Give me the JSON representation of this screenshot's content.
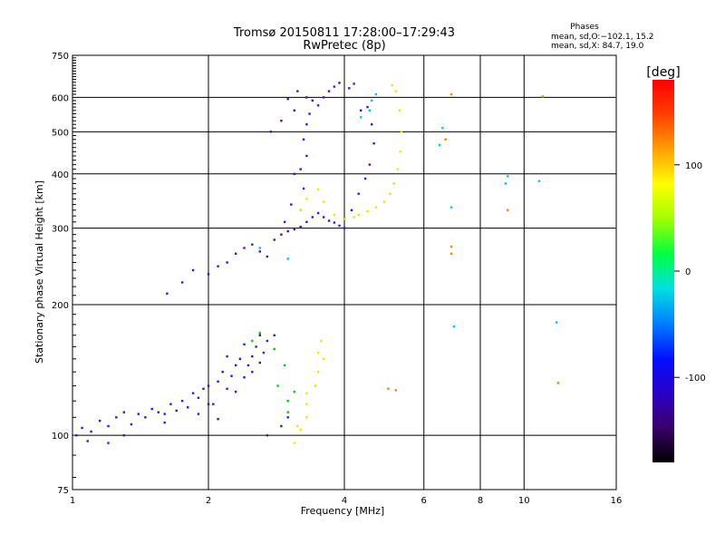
{
  "chart_data": {
    "type": "scatter",
    "title": "Tromsø 20150811 17:28:00–17:29:43",
    "subtitle": "RwPretec (8p)",
    "xlabel": "Frequency [MHz]",
    "ylabel": "Stationary phase Virtual Height [km]",
    "x_scale": "log",
    "y_scale": "log",
    "xlim": [
      1,
      16
    ],
    "ylim": [
      75,
      750
    ],
    "x_ticks": [
      1,
      2,
      4,
      6,
      8,
      10,
      16
    ],
    "y_ticks": [
      75,
      100,
      200,
      300,
      400,
      500,
      600,
      750
    ],
    "grid": true,
    "stats": {
      "heading": "Phases",
      "line1": "mean, sd,O:−102.1, 15.2",
      "line2": "mean, sd,X:  84.7, 19.0"
    },
    "colorbar": {
      "label": "[deg]",
      "range": [
        -180,
        180
      ],
      "ticks": [
        100,
        0,
        -100
      ],
      "colormap": [
        "#000000",
        "#3a0068",
        "#2a00c8",
        "#0010ff",
        "#0080ff",
        "#00e0e0",
        "#00ff40",
        "#a0ff00",
        "#ffff00",
        "#ffa000",
        "#ff4000",
        "#ff0000"
      ]
    },
    "series": [
      {
        "color": "#2020e0",
        "points": [
          [
            1.02,
            100
          ],
          [
            1.05,
            104
          ],
          [
            1.08,
            97
          ],
          [
            1.1,
            102
          ],
          [
            1.15,
            108
          ],
          [
            1.2,
            105
          ],
          [
            1.25,
            110
          ],
          [
            1.3,
            113
          ],
          [
            1.35,
            106
          ],
          [
            1.4,
            112
          ],
          [
            1.45,
            110
          ],
          [
            1.5,
            115
          ],
          [
            1.55,
            113
          ],
          [
            1.6,
            112
          ],
          [
            1.65,
            118
          ],
          [
            1.7,
            114
          ],
          [
            1.75,
            120
          ],
          [
            1.8,
            116
          ],
          [
            1.85,
            125
          ],
          [
            1.9,
            122
          ],
          [
            1.95,
            128
          ],
          [
            2.0,
            130
          ],
          [
            2.05,
            118
          ],
          [
            2.1,
            133
          ],
          [
            2.15,
            140
          ],
          [
            2.2,
            128
          ],
          [
            2.25,
            137
          ],
          [
            2.3,
            145
          ],
          [
            2.35,
            150
          ],
          [
            2.4,
            136
          ],
          [
            2.45,
            145
          ],
          [
            2.5,
            152
          ],
          [
            2.55,
            160
          ],
          [
            2.6,
            147
          ],
          [
            2.65,
            155
          ],
          [
            2.7,
            165
          ],
          [
            2.8,
            170
          ],
          [
            2.2,
            152
          ],
          [
            2.4,
            162
          ],
          [
            2.6,
            170
          ],
          [
            1.3,
            100
          ],
          [
            1.6,
            107
          ],
          [
            1.9,
            112
          ],
          [
            2.1,
            109
          ],
          [
            2.3,
            126
          ],
          [
            1.2,
            96
          ],
          [
            2.0,
            118
          ],
          [
            2.5,
            140
          ],
          [
            2.9,
            105
          ],
          [
            2.7,
            100
          ],
          [
            3.0,
            110
          ]
        ]
      },
      {
        "color": "#4a10c0",
        "points": [
          [
            1.62,
            212
          ],
          [
            1.75,
            225
          ],
          [
            1.85,
            240
          ],
          [
            2.0,
            235
          ],
          [
            2.1,
            245
          ],
          [
            2.2,
            250
          ],
          [
            2.3,
            262
          ],
          [
            2.4,
            270
          ],
          [
            2.5,
            275
          ],
          [
            2.6,
            265
          ],
          [
            2.7,
            258
          ],
          [
            2.8,
            282
          ],
          [
            2.9,
            290
          ],
          [
            3.0,
            295
          ],
          [
            3.1,
            298
          ],
          [
            3.2,
            302
          ],
          [
            3.3,
            310
          ],
          [
            3.4,
            318
          ],
          [
            3.5,
            325
          ],
          [
            3.6,
            318
          ],
          [
            3.7,
            312
          ],
          [
            3.8,
            309
          ],
          [
            3.9,
            304
          ],
          [
            4.0,
            300
          ],
          [
            3.2,
            330
          ],
          [
            3.25,
            370
          ],
          [
            3.2,
            410
          ],
          [
            3.3,
            440
          ],
          [
            3.25,
            480
          ],
          [
            3.3,
            520
          ],
          [
            3.35,
            550
          ],
          [
            3.5,
            575
          ],
          [
            3.6,
            600
          ],
          [
            3.7,
            620
          ],
          [
            3.8,
            635
          ],
          [
            3.9,
            648
          ],
          [
            4.1,
            630
          ],
          [
            4.2,
            645
          ],
          [
            3.3,
            600
          ],
          [
            3.4,
            590
          ],
          [
            4.35,
            560
          ],
          [
            4.5,
            570
          ],
          [
            4.6,
            520
          ],
          [
            4.65,
            470
          ],
          [
            4.55,
            420
          ],
          [
            4.45,
            390
          ],
          [
            4.3,
            360
          ],
          [
            4.15,
            330
          ],
          [
            4.0,
            315
          ],
          [
            2.75,
            500
          ],
          [
            2.9,
            530
          ],
          [
            3.1,
            560
          ],
          [
            3.0,
            595
          ],
          [
            3.15,
            620
          ],
          [
            3.1,
            400
          ],
          [
            3.05,
            340
          ],
          [
            2.95,
            310
          ]
        ]
      },
      {
        "color": "#e8e800",
        "points": [
          [
            4.3,
            322
          ],
          [
            4.5,
            328
          ],
          [
            4.7,
            335
          ],
          [
            4.9,
            345
          ],
          [
            5.05,
            360
          ],
          [
            5.15,
            380
          ],
          [
            5.25,
            410
          ],
          [
            5.32,
            450
          ],
          [
            5.35,
            500
          ],
          [
            5.3,
            560
          ],
          [
            5.2,
            620
          ],
          [
            5.1,
            640
          ],
          [
            4.2,
            318
          ],
          [
            4.0,
            315
          ],
          [
            3.8,
            322
          ],
          [
            3.6,
            345
          ],
          [
            3.5,
            368
          ],
          [
            3.3,
            350
          ],
          [
            3.2,
            330
          ],
          [
            3.45,
            130
          ],
          [
            3.3,
            125
          ],
          [
            3.5,
            140
          ],
          [
            3.6,
            150
          ],
          [
            3.3,
            110
          ],
          [
            3.2,
            103
          ],
          [
            3.1,
            96
          ],
          [
            3.5,
            155
          ],
          [
            3.55,
            165
          ],
          [
            3.3,
            118
          ],
          [
            3.15,
            105
          ]
        ]
      },
      {
        "color": "#00c0ff",
        "points": [
          [
            4.35,
            540
          ],
          [
            4.55,
            560
          ],
          [
            4.6,
            590
          ],
          [
            4.7,
            610
          ],
          [
            6.6,
            510
          ],
          [
            6.9,
            335
          ],
          [
            9.2,
            395
          ],
          [
            9.1,
            380
          ],
          [
            10.8,
            385
          ],
          [
            7.0,
            178
          ],
          [
            11.8,
            182
          ],
          [
            6.5,
            466
          ],
          [
            3.0,
            255
          ],
          [
            2.6,
            270
          ]
        ]
      },
      {
        "color": "#ff8000",
        "points": [
          [
            6.9,
            610
          ],
          [
            6.7,
            480
          ],
          [
            6.9,
            272
          ],
          [
            6.9,
            262
          ],
          [
            11.0,
            603
          ],
          [
            5.0,
            128
          ],
          [
            5.2,
            127
          ],
          [
            11.9,
            132
          ],
          [
            9.2,
            330
          ]
        ]
      },
      {
        "color": "#00d000",
        "points": [
          [
            2.6,
            172
          ],
          [
            2.5,
            165
          ],
          [
            2.8,
            158
          ],
          [
            2.95,
            145
          ],
          [
            3.0,
            120
          ],
          [
            3.1,
            126
          ],
          [
            2.85,
            130
          ],
          [
            3.0,
            113
          ]
        ]
      }
    ]
  }
}
